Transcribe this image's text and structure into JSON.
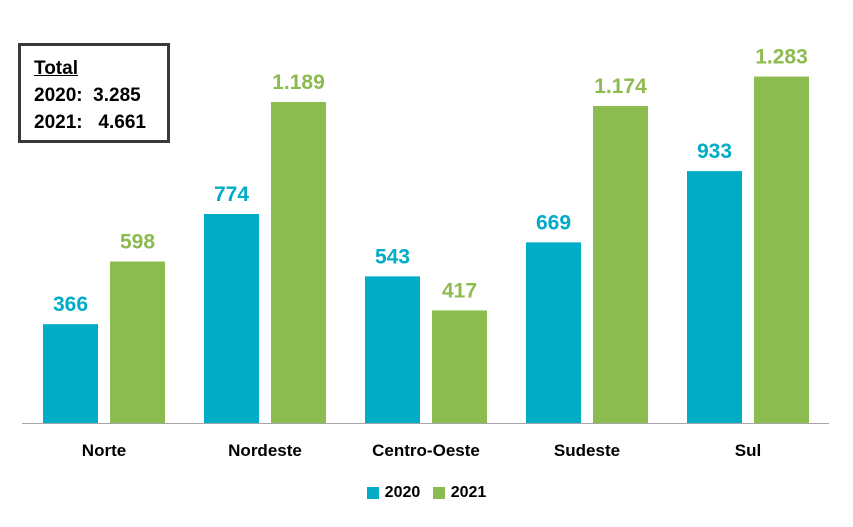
{
  "chart_data": {
    "type": "bar",
    "categories": [
      "Norte",
      "Nordeste",
      "Centro-Oeste",
      "Sudeste",
      "Sul"
    ],
    "series": [
      {
        "name": "2020",
        "color": "#00acc6",
        "values": [
          366,
          774,
          543,
          669,
          933
        ],
        "labels": [
          "366",
          "774",
          "543",
          "669",
          "933"
        ]
      },
      {
        "name": "2021",
        "color": "#8cbb4f",
        "values": [
          598,
          1189,
          417,
          1174,
          1283
        ],
        "labels": [
          "598",
          "1.189",
          "417",
          "1.174",
          "1.283"
        ]
      }
    ],
    "ylim": [
      0,
      1400
    ],
    "grid": false,
    "legend": "bottom-center"
  },
  "total_box": {
    "title": "Total",
    "line_2020": "2020:  3.285",
    "line_2021": "2021:   4.661"
  },
  "legend": {
    "items": [
      {
        "label": "2020",
        "color": "#00acc6"
      },
      {
        "label": "2021",
        "color": "#8cbb4f"
      }
    ]
  }
}
